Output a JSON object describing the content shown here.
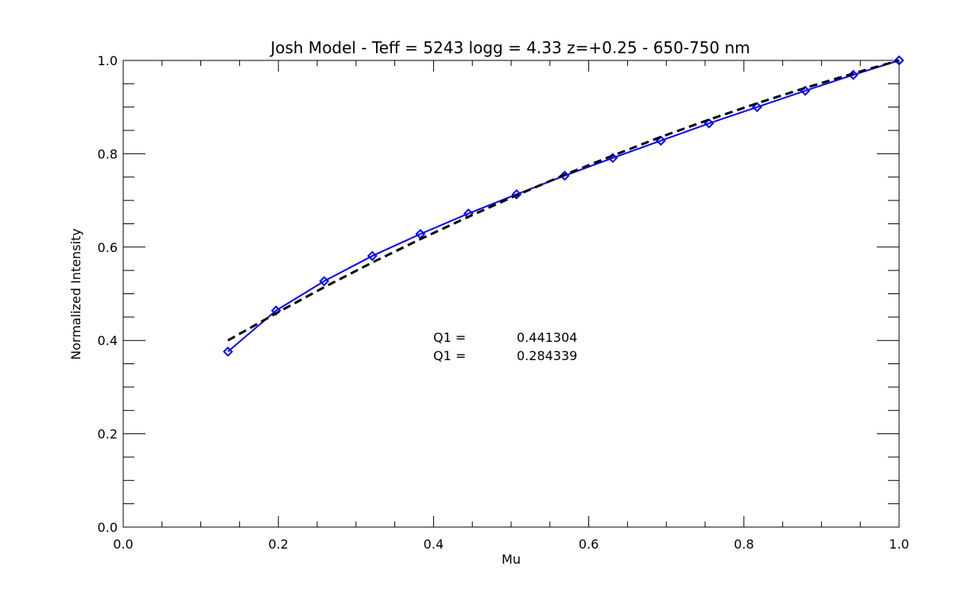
{
  "chart_data": {
    "type": "line",
    "title": "Josh Model - Teff = 5243 logg = 4.33 z=+0.25 - 650-750 nm",
    "xlabel": "Mu",
    "ylabel": "Normalized Intensity",
    "xlim": [
      0.0,
      1.0
    ],
    "ylim": [
      0.0,
      1.0
    ],
    "x_ticks": [
      0.0,
      0.2,
      0.4,
      0.6,
      0.8,
      1.0
    ],
    "x_tick_labels": [
      "0.0",
      "0.2",
      "0.4",
      "0.6",
      "0.8",
      "1.0"
    ],
    "y_ticks": [
      0.0,
      0.2,
      0.4,
      0.6,
      0.8,
      1.0
    ],
    "y_tick_labels": [
      "0.0",
      "0.2",
      "0.4",
      "0.6",
      "0.8",
      "1.0"
    ],
    "x_minor_step": 0.05,
    "y_minor_step": 0.05,
    "grid": false,
    "series": [
      {
        "style": "solid",
        "color": "#0000ff",
        "marker": "diamond",
        "x": [
          0.135,
          0.197,
          0.259,
          0.321,
          0.383,
          0.445,
          0.507,
          0.569,
          0.631,
          0.693,
          0.755,
          0.817,
          0.879,
          0.941,
          1.0
        ],
        "y": [
          0.376,
          0.464,
          0.527,
          0.581,
          0.628,
          0.672,
          0.713,
          0.753,
          0.791,
          0.828,
          0.865,
          0.9,
          0.935,
          0.969,
          1.0
        ]
      },
      {
        "style": "dashed",
        "color": "#000000",
        "x": [
          0.135,
          0.197,
          0.259,
          0.321,
          0.383,
          0.445,
          0.507,
          0.569,
          0.631,
          0.693,
          0.755,
          0.817,
          0.879,
          0.941,
          1.0
        ],
        "y": [
          0.4,
          0.458,
          0.514,
          0.567,
          0.617,
          0.665,
          0.711,
          0.755,
          0.796,
          0.836,
          0.873,
          0.908,
          0.941,
          0.972,
          1.0
        ]
      }
    ],
    "annotations": [
      {
        "label": "Q1 =",
        "value": "0.441304"
      },
      {
        "label": "Q1 =",
        "value": "0.284339"
      }
    ]
  }
}
